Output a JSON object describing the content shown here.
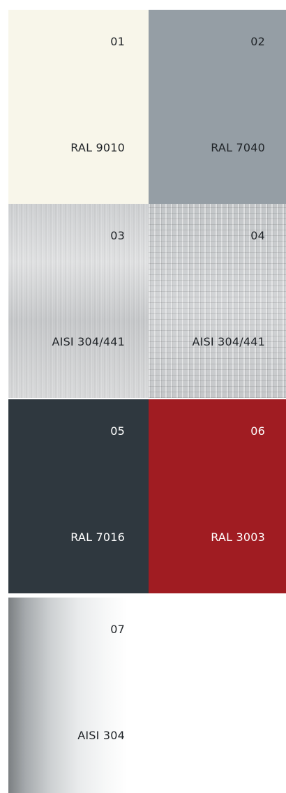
{
  "swatches": [
    {
      "number": "01",
      "label": "RAL 9010",
      "color": "#f8f6ea",
      "text_color": "#1f2327",
      "finish": "solid"
    },
    {
      "number": "02",
      "label": "RAL 7040",
      "color": "#959ea5",
      "text_color": "#1f2327",
      "finish": "solid"
    },
    {
      "number": "03",
      "label": "AISI 304/441",
      "color": "#d3d5d7",
      "text_color": "#1f2327",
      "finish": "brushed-stainless"
    },
    {
      "number": "04",
      "label": "AISI 304/441",
      "color": "#c6c8ca",
      "text_color": "#1f2327",
      "finish": "patterned-stainless"
    },
    {
      "number": "05",
      "label": "RAL 7016",
      "color": "#2f383f",
      "text_color": "#ffffff",
      "finish": "solid"
    },
    {
      "number": "06",
      "label": "RAL 3003",
      "color": "#a01c22",
      "text_color": "#ffffff",
      "finish": "solid"
    },
    {
      "number": "07",
      "label": "AISI 304",
      "color": "#e9ebec",
      "text_color": "#1f2327",
      "finish": "polished-stainless"
    }
  ]
}
